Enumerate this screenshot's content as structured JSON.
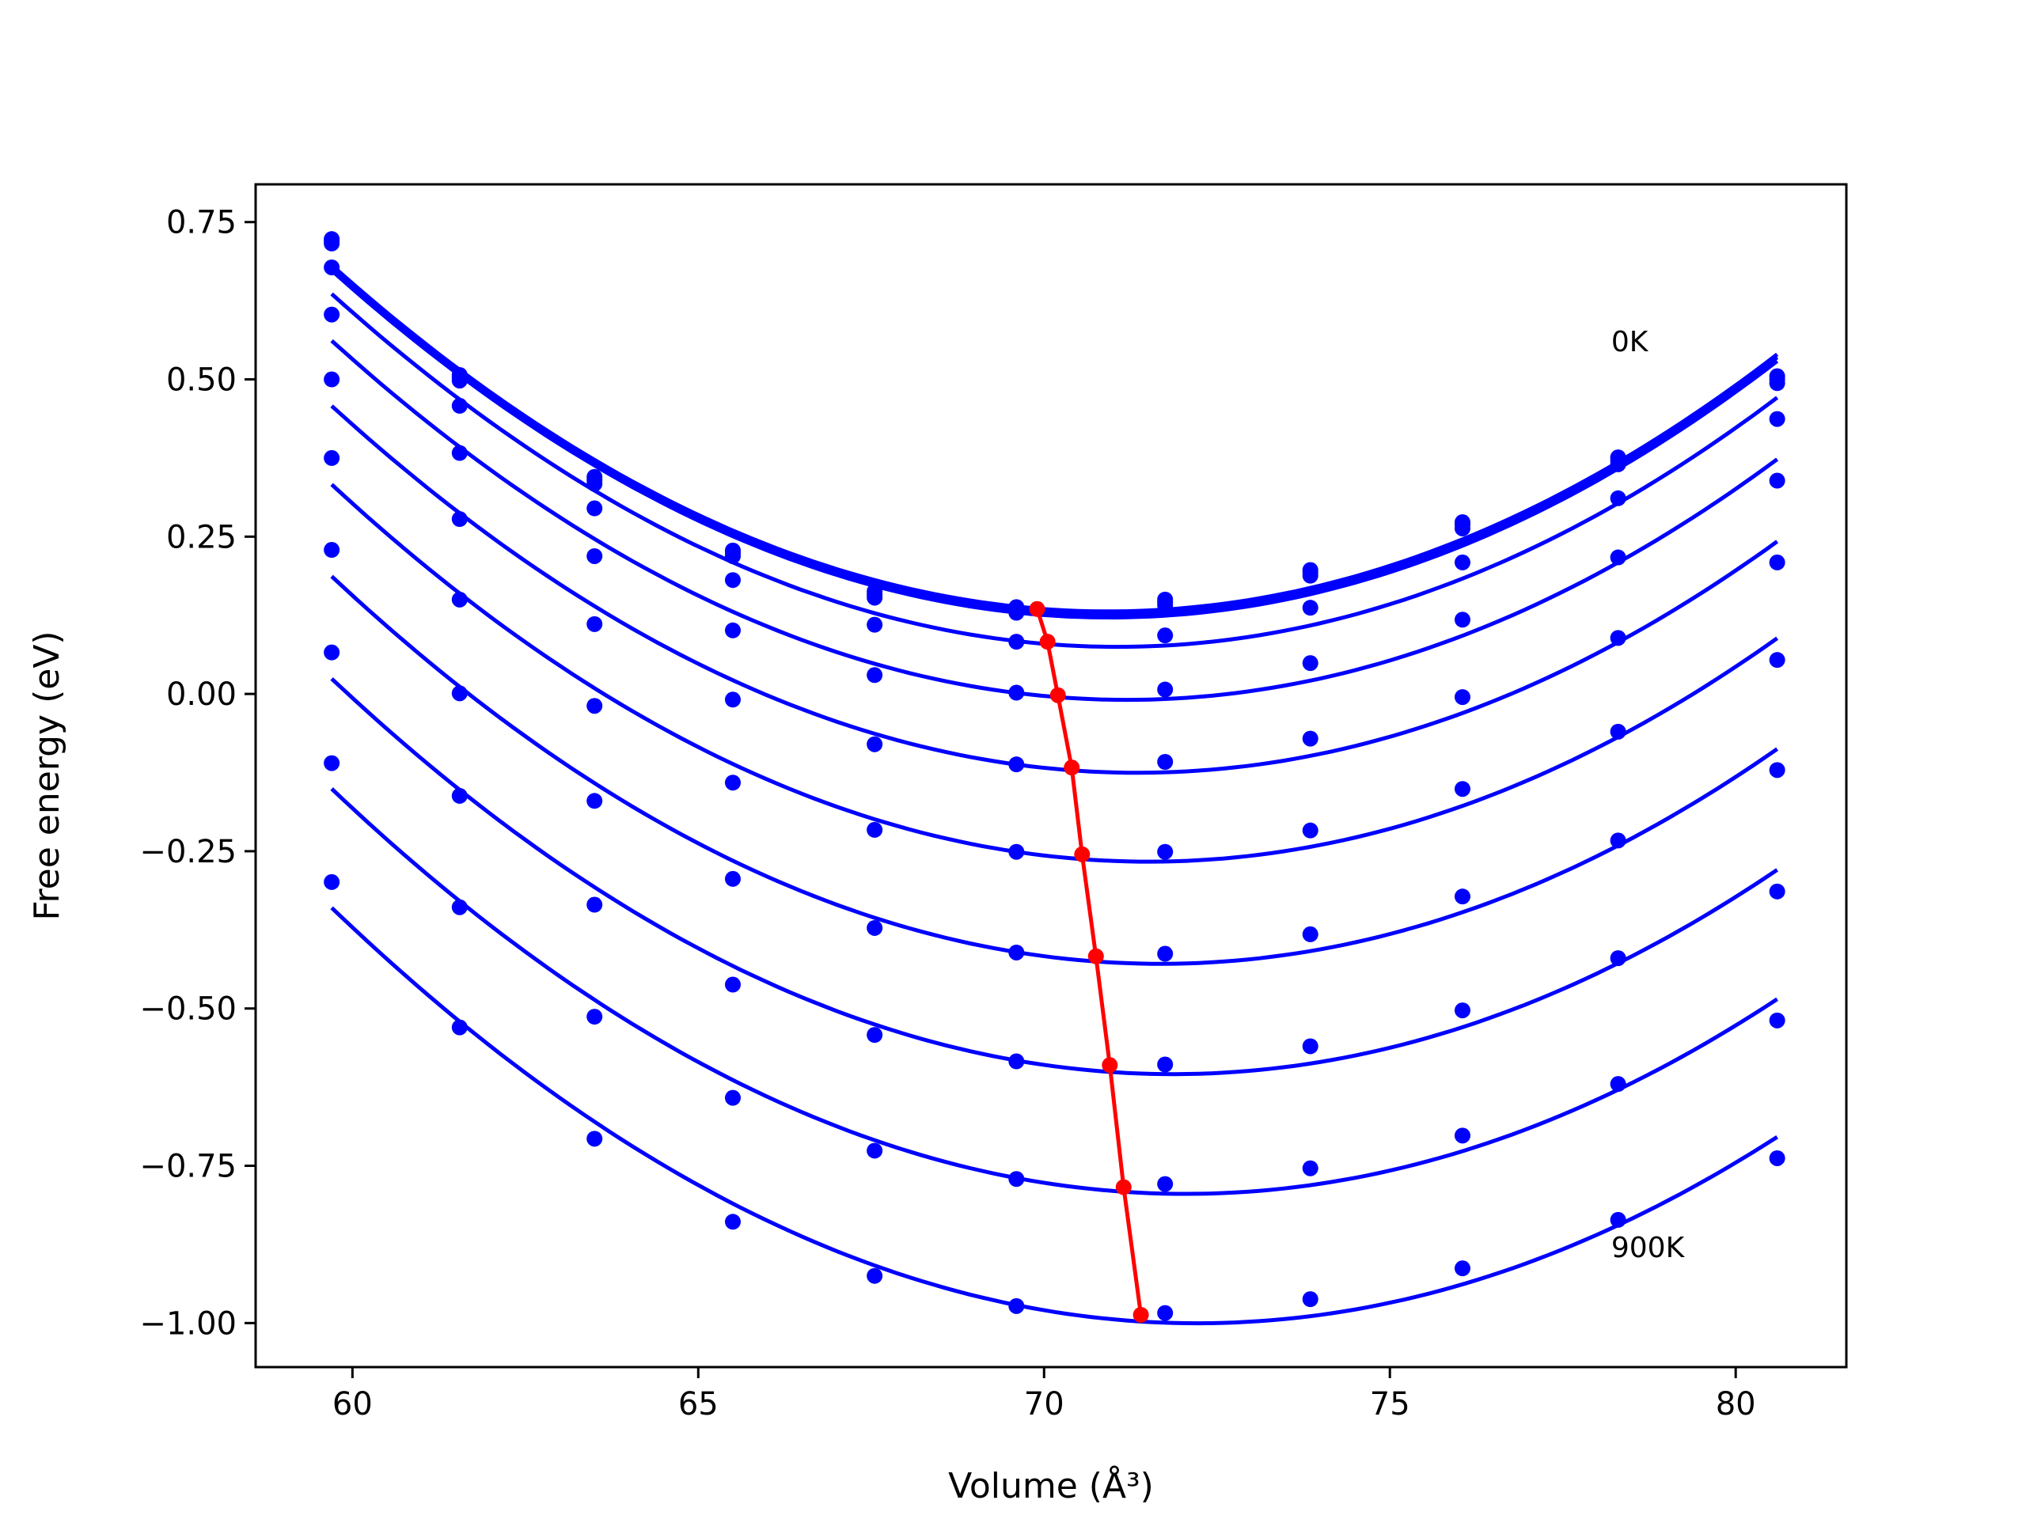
{
  "chart_data": {
    "type": "line",
    "xlabel": "Volume (Å³)",
    "ylabel": "Free energy (eV)",
    "xlim": [
      58.6,
      81.6
    ],
    "ylim": [
      -1.07,
      0.81
    ],
    "xticks": [
      60,
      65,
      70,
      75,
      80
    ],
    "yticks": [
      0.75,
      0.5,
      0.25,
      0.0,
      -0.25,
      -0.5,
      -0.75,
      -1.0
    ],
    "ytick_labels": [
      "0.75",
      "0.50",
      "0.25",
      "0.00",
      "−0.25",
      "−0.50",
      "−0.75",
      "−1.00"
    ],
    "grid": false,
    "annotations": [
      {
        "text": "0K",
        "x": 78.2,
        "y": 0.56
      },
      {
        "text": "900K",
        "x": 78.2,
        "y": -0.88
      }
    ],
    "volumes": [
      59.7,
      61.55,
      63.5,
      65.5,
      67.55,
      69.6,
      71.75,
      73.85,
      76.05,
      78.3,
      80.6
    ],
    "series": [
      {
        "color": "#0000ff",
        "values": [
          0.723,
          0.507,
          0.345,
          0.228,
          0.163,
          0.138,
          0.15,
          0.197,
          0.273,
          0.376,
          0.505
        ]
      },
      {
        "color": "#0000ff",
        "values": [
          0.72,
          0.503,
          0.34,
          0.224,
          0.158,
          0.134,
          0.146,
          0.193,
          0.269,
          0.371,
          0.5
        ]
      },
      {
        "color": "#0000ff",
        "values": [
          0.716,
          0.498,
          0.334,
          0.219,
          0.153,
          0.129,
          0.141,
          0.188,
          0.263,
          0.365,
          0.494
        ]
      },
      {
        "color": "#0000ff",
        "values": [
          0.678,
          0.458,
          0.295,
          0.181,
          0.11,
          0.083,
          0.093,
          0.137,
          0.209,
          0.311,
          0.437
        ]
      },
      {
        "color": "#0000ff",
        "values": [
          0.603,
          0.383,
          0.219,
          0.101,
          0.03,
          0.002,
          0.007,
          0.049,
          0.118,
          0.217,
          0.339
        ]
      },
      {
        "color": "#0000ff",
        "values": [
          0.5,
          0.278,
          0.111,
          -0.009,
          -0.08,
          -0.112,
          -0.108,
          -0.071,
          -0.005,
          0.089,
          0.209
        ]
      },
      {
        "color": "#0000ff",
        "values": [
          0.375,
          0.15,
          -0.019,
          -0.141,
          -0.216,
          -0.251,
          -0.251,
          -0.217,
          -0.151,
          -0.06,
          0.054
        ]
      },
      {
        "color": "#0000ff",
        "values": [
          0.229,
          0.001,
          -0.17,
          -0.294,
          -0.372,
          -0.411,
          -0.413,
          -0.382,
          -0.322,
          -0.233,
          -0.121
        ]
      },
      {
        "color": "#0000ff",
        "values": [
          0.066,
          -0.162,
          -0.335,
          -0.462,
          -0.542,
          -0.584,
          -0.589,
          -0.56,
          -0.503,
          -0.42,
          -0.314
        ]
      },
      {
        "color": "#0000ff",
        "values": [
          -0.11,
          -0.339,
          -0.513,
          -0.642,
          -0.726,
          -0.771,
          -0.779,
          -0.754,
          -0.702,
          -0.62,
          -0.519
        ]
      },
      {
        "color": "#0000ff",
        "values": [
          -0.299,
          -0.53,
          -0.707,
          -0.839,
          -0.925,
          -0.973,
          -0.984,
          -0.962,
          -0.913,
          -0.836,
          -0.738
        ]
      }
    ],
    "minima": {
      "color": "#ff0000",
      "x": [
        69.9,
        70.05,
        70.2,
        70.4,
        70.55,
        70.75,
        70.95,
        71.15,
        71.4
      ],
      "y": [
        0.135,
        0.083,
        -0.002,
        -0.117,
        -0.255,
        -0.417,
        -0.59,
        -0.784,
        -0.987
      ]
    }
  }
}
